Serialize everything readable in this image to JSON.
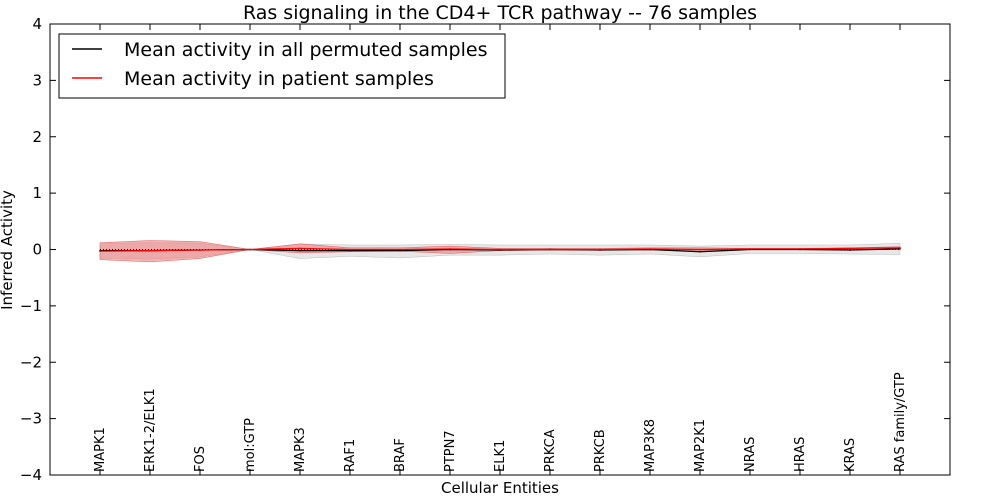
{
  "chart_data": {
    "type": "line",
    "title": "Ras signaling in the CD4+ TCR pathway -- 76 samples",
    "xlabel": "Cellular Entities",
    "ylabel": "Inferred Activity",
    "ylim": [
      -4,
      4
    ],
    "yticks": [
      4,
      3,
      2,
      1,
      0,
      -1,
      -2,
      -3,
      -4
    ],
    "ytick_labels": [
      "4",
      "3",
      "2",
      "1",
      "0",
      "−1",
      "−2",
      "−3",
      "−4"
    ],
    "categories": [
      "MAPK1",
      "ERK1-2/ELK1",
      "FOS",
      "mol:GTP",
      "MAPK3",
      "RAF1",
      "BRAF",
      "PTPN7",
      "ELK1",
      "PRKCA",
      "PRKCB",
      "MAP3K8",
      "MAP2K1",
      "NRAS",
      "HRAS",
      "KRAS",
      "RAS family/GTP"
    ],
    "series": [
      {
        "name": "Mean activity in all permuted samples",
        "color": "#000000",
        "values": [
          -0.02,
          -0.02,
          -0.01,
          0.0,
          -0.02,
          -0.02,
          -0.02,
          0.0,
          -0.01,
          0.0,
          -0.01,
          0.0,
          -0.04,
          0.0,
          0.0,
          -0.01,
          0.01
        ],
        "band_lower": [
          -0.15,
          -0.17,
          -0.13,
          0.0,
          -0.16,
          -0.12,
          -0.15,
          -0.1,
          -0.1,
          -0.08,
          -0.1,
          -0.08,
          -0.13,
          -0.07,
          -0.07,
          -0.08,
          -0.09
        ],
        "band_upper": [
          0.1,
          0.12,
          0.11,
          0.0,
          0.1,
          0.08,
          0.08,
          0.09,
          0.08,
          0.08,
          0.08,
          0.08,
          0.06,
          0.08,
          0.08,
          0.08,
          0.11
        ]
      },
      {
        "name": "Mean activity in patient samples",
        "color": "#ff0000",
        "values": [
          -0.03,
          -0.02,
          -0.01,
          0.0,
          0.02,
          0.0,
          0.0,
          0.01,
          0.0,
          0.0,
          0.0,
          0.01,
          0.0,
          0.01,
          0.01,
          0.02,
          0.03
        ],
        "band_lower": [
          -0.18,
          -0.22,
          -0.16,
          0.0,
          -0.06,
          -0.04,
          -0.03,
          -0.07,
          -0.02,
          -0.01,
          -0.01,
          -0.01,
          -0.03,
          0.0,
          0.0,
          0.0,
          0.01
        ],
        "band_upper": [
          0.12,
          0.16,
          0.14,
          0.0,
          0.1,
          0.03,
          0.03,
          0.06,
          0.02,
          0.02,
          0.02,
          0.03,
          0.03,
          0.02,
          0.02,
          0.03,
          0.05
        ]
      }
    ],
    "reference_line": {
      "y": 0,
      "style": "dotted"
    },
    "legend": {
      "placement": "top-left"
    }
  }
}
